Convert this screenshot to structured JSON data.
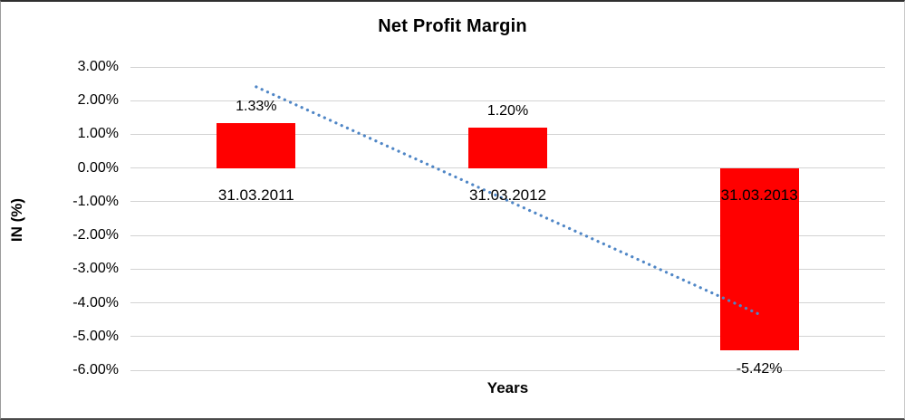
{
  "chart": {
    "title": "Net Profit Margin",
    "y_axis_title": "IN (%)",
    "x_axis_title": "Years",
    "colors": {
      "bar": "#ff0000",
      "trendline": "#4f86c6",
      "gridline": "#d3d3d3",
      "text": "#000000"
    }
  },
  "chart_data": {
    "type": "bar",
    "title": "Net Profit Margin",
    "xlabel": "Years",
    "ylabel": "IN (%)",
    "categories": [
      "31.03.2011",
      "31.03.2012",
      "31.03.2013"
    ],
    "values": [
      1.33,
      1.2,
      -5.42
    ],
    "data_labels": [
      "1.33%",
      "1.20%",
      "-5.42%"
    ],
    "ylim": [
      -6,
      3
    ],
    "ytick_step": 1,
    "ytick_labels": [
      "3.00%",
      "2.00%",
      "1.00%",
      "0.00%",
      "-1.00%",
      "-2.00%",
      "-3.00%",
      "-4.00%",
      "-5.00%",
      "-6.00%"
    ],
    "grid": true,
    "legend": false,
    "bar_color": "#ff0000",
    "trendline": {
      "type": "linear",
      "style": "dotted",
      "color": "#4f86c6",
      "start_value": 2.41,
      "end_value": -4.34
    }
  }
}
